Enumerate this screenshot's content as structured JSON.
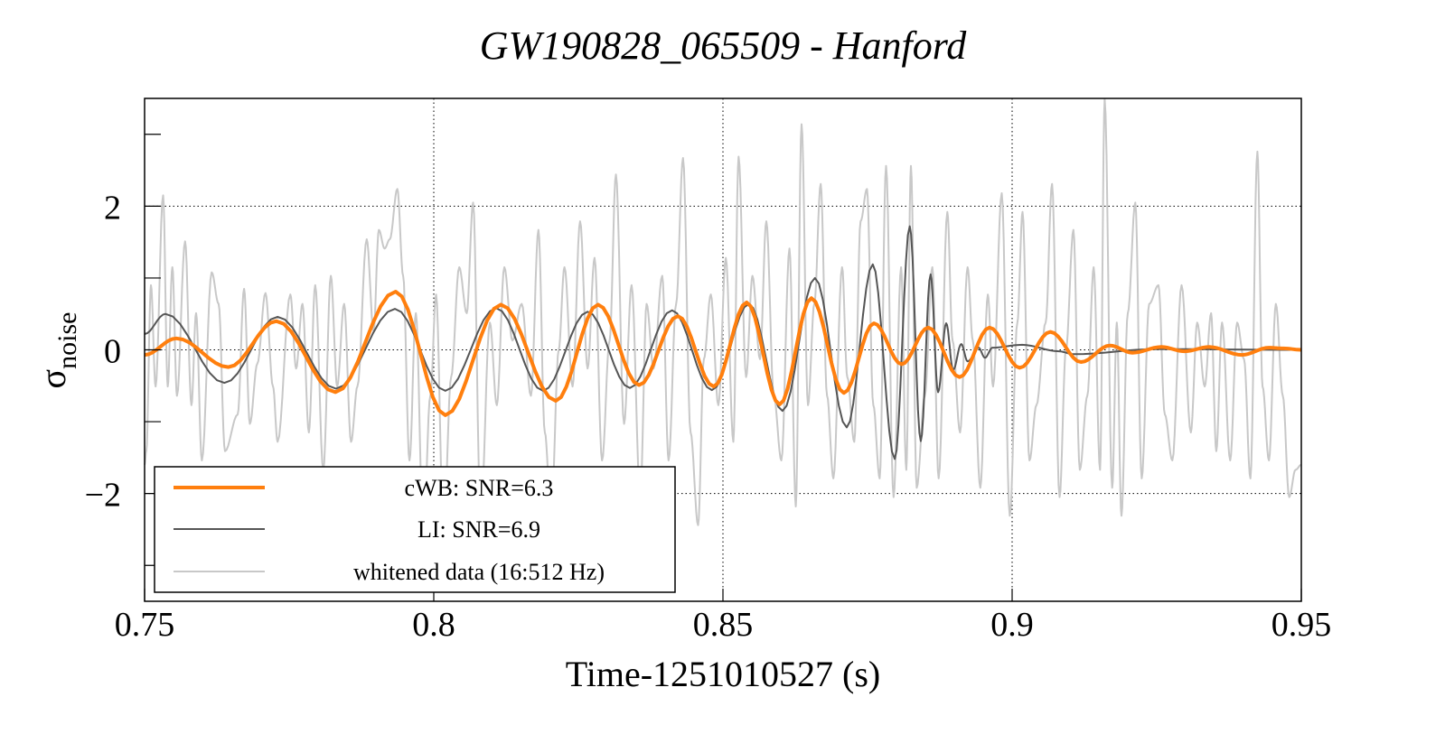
{
  "chart_data": {
    "type": "line",
    "title": "GW190828_065509 - Hanford",
    "xlabel": "Time-1251010527 (s)",
    "ylabel": "σ",
    "ylabel_subscript": "noise",
    "xlim": [
      0.75,
      0.95
    ],
    "ylim": [
      -3.5,
      3.5
    ],
    "x_ticks": [
      0.75,
      0.8,
      0.85,
      0.9,
      0.95
    ],
    "x_tick_labels": [
      "0.75",
      "0.8",
      "0.85",
      "0.9",
      "0.95"
    ],
    "y_ticks": [
      -2,
      0,
      2
    ],
    "y_tick_labels": [
      "−2",
      "0",
      "2"
    ],
    "y_minor_ticks": [
      -3,
      -1,
      1,
      3
    ],
    "grid": true,
    "legend_placement": "bottom-left",
    "series": [
      {
        "name": "whitened data (16:512 Hz)",
        "color": "#c8c8c8",
        "points": [
          [
            0.75,
            -1.6
          ],
          [
            0.7503,
            -1.41
          ],
          [
            0.7511,
            0.9
          ],
          [
            0.7519,
            -0.51
          ],
          [
            0.7532,
            2.15
          ],
          [
            0.754,
            -0.51
          ],
          [
            0.7548,
            1.15
          ],
          [
            0.7556,
            -0.64
          ],
          [
            0.757,
            1.51
          ],
          [
            0.7581,
            -0.77
          ],
          [
            0.7589,
            0.51
          ],
          [
            0.7599,
            -1.54
          ],
          [
            0.7616,
            1.08
          ],
          [
            0.7628,
            0.64
          ],
          [
            0.7639,
            -1.41
          ],
          [
            0.7661,
            -0.9
          ],
          [
            0.7672,
            0.85
          ],
          [
            0.7682,
            -1.03
          ],
          [
            0.7695,
            -0.19
          ],
          [
            0.7709,
            0.79
          ],
          [
            0.7722,
            -0.51
          ],
          [
            0.773,
            -1.28
          ],
          [
            0.7752,
            0.77
          ],
          [
            0.7762,
            -0.26
          ],
          [
            0.7773,
            0.64
          ],
          [
            0.7784,
            -1.15
          ],
          [
            0.7795,
            0.9
          ],
          [
            0.7809,
            -1.67
          ],
          [
            0.7822,
            1.03
          ],
          [
            0.7833,
            -0.51
          ],
          [
            0.7845,
            0.64
          ],
          [
            0.7857,
            -1.28
          ],
          [
            0.7868,
            -0.51
          ],
          [
            0.7884,
            1.54
          ],
          [
            0.7896,
            0.26
          ],
          [
            0.7905,
            1.67
          ],
          [
            0.7915,
            1.41
          ],
          [
            0.7924,
            1.54
          ],
          [
            0.7937,
            2.24
          ],
          [
            0.7947,
            1.03
          ],
          [
            0.7958,
            -1.54
          ],
          [
            0.7969,
            0.51
          ],
          [
            0.7982,
            -2.6
          ],
          [
            0.7994,
            -0.64
          ],
          [
            0.8004,
            0.77
          ],
          [
            0.8017,
            -2.56
          ],
          [
            0.803,
            -0.38
          ],
          [
            0.8044,
            1.15
          ],
          [
            0.8057,
            0.51
          ],
          [
            0.8068,
            2.05
          ],
          [
            0.8081,
            -2.3
          ],
          [
            0.8097,
            0.38
          ],
          [
            0.8109,
            -0.77
          ],
          [
            0.8122,
            1.15
          ],
          [
            0.8136,
            0.13
          ],
          [
            0.8152,
            0.64
          ],
          [
            0.8168,
            -0.64
          ],
          [
            0.8181,
            1.67
          ],
          [
            0.8192,
            -1.15
          ],
          [
            0.8203,
            -2.31
          ],
          [
            0.8216,
            0.0
          ],
          [
            0.8226,
            1.15
          ],
          [
            0.824,
            -0.51
          ],
          [
            0.8253,
            1.79
          ],
          [
            0.8266,
            -0.26
          ],
          [
            0.8278,
            1.28
          ],
          [
            0.8291,
            -1.54
          ],
          [
            0.8304,
            0.13
          ],
          [
            0.8315,
            2.44
          ],
          [
            0.8329,
            -1.03
          ],
          [
            0.8342,
            0.9
          ],
          [
            0.8357,
            -2.05
          ],
          [
            0.8368,
            0.64
          ],
          [
            0.838,
            -0.26
          ],
          [
            0.8395,
            1.03
          ],
          [
            0.8406,
            -1.54
          ],
          [
            0.8419,
            0.64
          ],
          [
            0.8431,
            2.67
          ],
          [
            0.8444,
            -1.15
          ],
          [
            0.8457,
            -2.44
          ],
          [
            0.8467,
            -0.13
          ],
          [
            0.8479,
            0.77
          ],
          [
            0.8492,
            -0.77
          ],
          [
            0.8505,
            1.28
          ],
          [
            0.8518,
            -1.28
          ],
          [
            0.8527,
            2.69
          ],
          [
            0.854,
            -0.38
          ],
          [
            0.8551,
            1.03
          ],
          [
            0.8564,
            -0.13
          ],
          [
            0.8575,
            1.79
          ],
          [
            0.8588,
            -0.64
          ],
          [
            0.8601,
            -1.54
          ],
          [
            0.8615,
            1.41
          ],
          [
            0.8626,
            -2.18
          ],
          [
            0.8636,
            3.14
          ],
          [
            0.8647,
            -0.77
          ],
          [
            0.8658,
            0.64
          ],
          [
            0.8669,
            2.31
          ],
          [
            0.868,
            -0.64
          ],
          [
            0.8691,
            -1.79
          ],
          [
            0.8706,
            1.15
          ],
          [
            0.8715,
            -0.38
          ],
          [
            0.8727,
            -1.28
          ],
          [
            0.8738,
            1.79
          ],
          [
            0.8749,
            2.24
          ],
          [
            0.876,
            -0.77
          ],
          [
            0.8771,
            -1.79
          ],
          [
            0.8782,
            2.56
          ],
          [
            0.8795,
            -2.05
          ],
          [
            0.8808,
            1.15
          ],
          [
            0.8817,
            -1.67
          ],
          [
            0.8825,
            2.56
          ],
          [
            0.8835,
            -1.92
          ],
          [
            0.8849,
            -0.64
          ],
          [
            0.8862,
            1.15
          ],
          [
            0.8873,
            -1.79
          ],
          [
            0.8888,
            1.92
          ],
          [
            0.8897,
            0.13
          ],
          [
            0.891,
            -1.15
          ],
          [
            0.8923,
            1.15
          ],
          [
            0.8932,
            0.13
          ],
          [
            0.8945,
            -1.92
          ],
          [
            0.8958,
            0.77
          ],
          [
            0.8967,
            -0.51
          ],
          [
            0.8982,
            2.18
          ],
          [
            0.8996,
            -2.31
          ],
          [
            0.9009,
            0.38
          ],
          [
            0.9018,
            1.92
          ],
          [
            0.903,
            -1.54
          ],
          [
            0.9042,
            -0.77
          ],
          [
            0.9058,
            0.38
          ],
          [
            0.9069,
            2.31
          ],
          [
            0.9082,
            -2.05
          ],
          [
            0.9093,
            0.0
          ],
          [
            0.9106,
            1.67
          ],
          [
            0.9117,
            -1.67
          ],
          [
            0.913,
            -0.64
          ],
          [
            0.9141,
            1.15
          ],
          [
            0.9152,
            -1.67
          ],
          [
            0.916,
            3.49
          ],
          [
            0.9173,
            -1.92
          ],
          [
            0.9181,
            0.38
          ],
          [
            0.9189,
            -2.31
          ],
          [
            0.92,
            0.51
          ],
          [
            0.9213,
            2.05
          ],
          [
            0.9224,
            -1.79
          ],
          [
            0.9237,
            0.64
          ],
          [
            0.9253,
            0.9
          ],
          [
            0.9264,
            -0.9
          ],
          [
            0.9277,
            -1.54
          ],
          [
            0.9293,
            0.9
          ],
          [
            0.9309,
            -1.15
          ],
          [
            0.932,
            0.38
          ],
          [
            0.9333,
            -0.51
          ],
          [
            0.9344,
            0.51
          ],
          [
            0.9353,
            -1.41
          ],
          [
            0.9363,
            0.38
          ],
          [
            0.9377,
            -1.54
          ],
          [
            0.9389,
            0.38
          ],
          [
            0.9401,
            -0.13
          ],
          [
            0.9412,
            -1.79
          ],
          [
            0.9424,
            2.76
          ],
          [
            0.9433,
            -0.51
          ],
          [
            0.9444,
            -1.54
          ],
          [
            0.9456,
            0.64
          ],
          [
            0.9468,
            -0.64
          ],
          [
            0.9479,
            -2.05
          ],
          [
            0.949,
            -1.67
          ],
          [
            0.95,
            -1.6
          ]
        ]
      },
      {
        "name": "LI: SNR=6.9",
        "color": "#555555",
        "points": [
          [
            0.75,
            0.22
          ],
          [
            0.7536,
            0.5
          ],
          [
            0.7638,
            -0.46
          ],
          [
            0.773,
            0.46
          ],
          [
            0.7831,
            -0.54
          ],
          [
            0.7933,
            0.57
          ],
          [
            0.802,
            -0.57
          ],
          [
            0.8108,
            0.58
          ],
          [
            0.8189,
            -0.57
          ],
          [
            0.8266,
            0.53
          ],
          [
            0.8339,
            -0.53
          ],
          [
            0.8412,
            0.55
          ],
          [
            0.8481,
            -0.56
          ],
          [
            0.8545,
            0.64
          ],
          [
            0.8603,
            -0.85
          ],
          [
            0.8659,
            1.0
          ],
          [
            0.8714,
            -1.08
          ],
          [
            0.8759,
            1.19
          ],
          [
            0.8797,
            -1.52
          ],
          [
            0.8823,
            1.72
          ],
          [
            0.8842,
            -1.27
          ],
          [
            0.8859,
            1.05
          ],
          [
            0.8872,
            -0.59
          ],
          [
            0.8886,
            0.37
          ],
          [
            0.8898,
            -0.28
          ],
          [
            0.8912,
            0.08
          ],
          [
            0.8923,
            -0.16
          ],
          [
            0.8942,
            0.03
          ],
          [
            0.8953,
            -0.11
          ],
          [
            0.8966,
            0.03
          ],
          [
            0.9017,
            0.07
          ],
          [
            0.9081,
            -0.02
          ],
          [
            0.9106,
            -0.06
          ],
          [
            0.925,
            0.01
          ],
          [
            0.95,
            0.0
          ]
        ]
      },
      {
        "name": "cWB: SNR=6.3",
        "color": "#ff7f0e",
        "points": [
          [
            0.75,
            -0.07
          ],
          [
            0.7555,
            0.16
          ],
          [
            0.7645,
            -0.24
          ],
          [
            0.7728,
            0.4
          ],
          [
            0.783,
            -0.59
          ],
          [
            0.7934,
            0.81
          ],
          [
            0.802,
            -0.91
          ],
          [
            0.8116,
            0.63
          ],
          [
            0.8211,
            -0.71
          ],
          [
            0.8284,
            0.63
          ],
          [
            0.8355,
            -0.49
          ],
          [
            0.8422,
            0.47
          ],
          [
            0.8484,
            -0.51
          ],
          [
            0.8541,
            0.66
          ],
          [
            0.8598,
            -0.76
          ],
          [
            0.8653,
            0.72
          ],
          [
            0.8709,
            -0.6
          ],
          [
            0.8761,
            0.37
          ],
          [
            0.8809,
            -0.2
          ],
          [
            0.8855,
            0.31
          ],
          [
            0.8909,
            -0.38
          ],
          [
            0.8961,
            0.31
          ],
          [
            0.9013,
            -0.25
          ],
          [
            0.9066,
            0.25
          ],
          [
            0.9119,
            -0.17
          ],
          [
            0.9169,
            0.06
          ],
          [
            0.9208,
            -0.04
          ],
          [
            0.9258,
            0.04
          ],
          [
            0.9298,
            -0.02
          ],
          [
            0.9341,
            0.04
          ],
          [
            0.9397,
            -0.07
          ],
          [
            0.9444,
            0.03
          ],
          [
            0.9469,
            0.02
          ],
          [
            0.95,
            0.0
          ]
        ]
      }
    ],
    "legend": [
      {
        "label": "cWB: SNR=6.3",
        "color": "#ff7f0e"
      },
      {
        "label": "LI: SNR=6.9",
        "color": "#555555"
      },
      {
        "label": "whitened data (16:512 Hz)",
        "color": "#c8c8c8"
      }
    ]
  }
}
